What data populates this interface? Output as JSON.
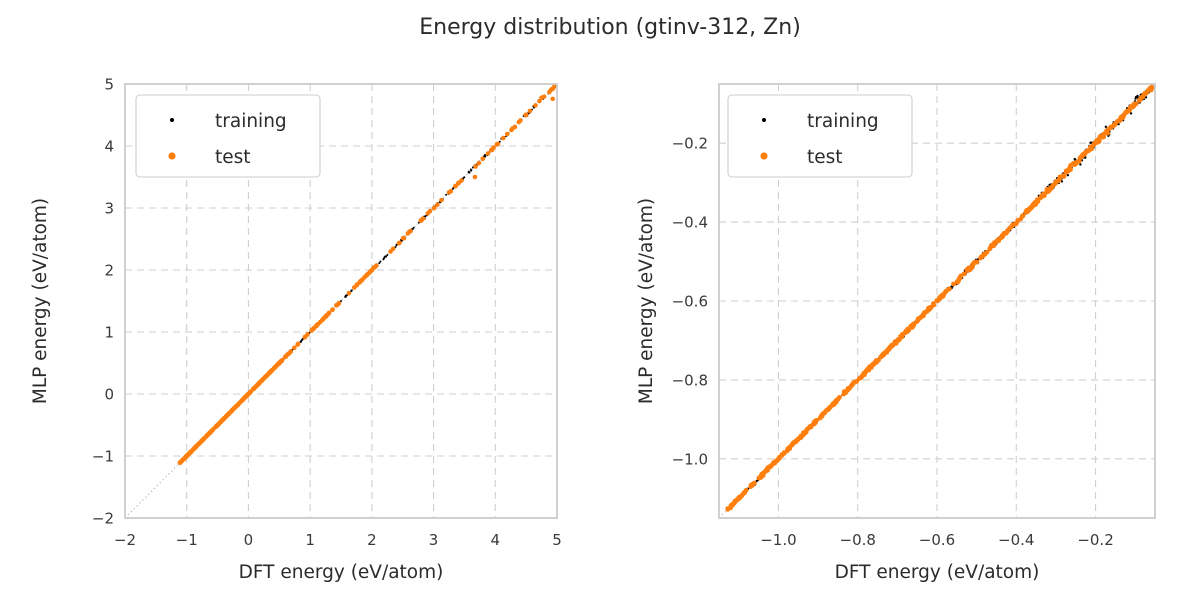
{
  "title": "Energy distribution (gtinv-312, Zn)",
  "colors": {
    "training": "#000000",
    "test": "#ff7f0e",
    "grid": "#cfcfcf",
    "spine": "#cbcbcb",
    "ref_line": "#aeaeae",
    "text": "#2b2b2b"
  },
  "legend": {
    "items": [
      {
        "label": "training",
        "color": "#000000"
      },
      {
        "label": "test",
        "color": "#ff7f0e"
      }
    ]
  },
  "chart_data": [
    {
      "id": "left",
      "type": "scatter",
      "title": "",
      "xlabel": "DFT energy (eV/atom)",
      "ylabel": "MLP energy (eV/atom)",
      "xlim": [
        -2,
        5
      ],
      "ylim": [
        -2,
        5
      ],
      "xticks": [
        -2,
        -1,
        0,
        1,
        2,
        3,
        4,
        5
      ],
      "xtick_labels": [
        "−2",
        "−1",
        "0",
        "1",
        "2",
        "3",
        "4",
        "5"
      ],
      "yticks": [
        -2,
        -1,
        0,
        1,
        2,
        3,
        4,
        5
      ],
      "ytick_labels": [
        "−2",
        "−1",
        "0",
        "1",
        "2",
        "3",
        "4",
        "5"
      ],
      "grid": "dashed",
      "legend_position": "upper-left",
      "identity_line": {
        "from": [
          -2,
          -2
        ],
        "to": [
          5,
          5
        ],
        "style": "dotted"
      },
      "data_range_note": "points lie on y=x from -1.12 to 4.98",
      "series": [
        {
          "name": "training",
          "color": "#000000",
          "marker_radius_px": 1.0,
          "seed": 7,
          "bands": [
            {
              "x_range": [
                -1.12,
                0.6
              ],
              "count": 210,
              "y_noise": 0.0035
            },
            {
              "x_range": [
                0.6,
                2.2
              ],
              "count": 120,
              "y_noise": 0.01
            },
            {
              "x_range": [
                2.2,
                3.6
              ],
              "count": 80,
              "y_noise": 0.018
            },
            {
              "x_range": [
                3.6,
                4.98
              ],
              "count": 70,
              "y_noise": 0.02
            }
          ],
          "points": []
        },
        {
          "name": "test",
          "color": "#ff7f0e",
          "marker_radius_px": 2.3,
          "seed": 13,
          "bands": [
            {
              "x_range": [
                -1.12,
                0.55
              ],
              "count": 240,
              "y_noise": 0.0025
            },
            {
              "x_range": [
                0.55,
                2.0
              ],
              "count": 60,
              "y_noise": 0.005
            },
            {
              "x_range": [
                2.0,
                3.5
              ],
              "count": 30,
              "y_noise": 0.009
            },
            {
              "x_range": [
                3.5,
                4.97
              ],
              "count": 28,
              "y_noise": 0.012
            }
          ],
          "points": [
            [
              3.67,
              3.5
            ],
            [
              4.93,
              4.76
            ],
            [
              4.97,
              4.97
            ],
            [
              4.75,
              4.78
            ]
          ]
        }
      ]
    },
    {
      "id": "right",
      "type": "scatter",
      "title": "",
      "xlabel": "DFT energy (eV/atom)",
      "ylabel": "MLP energy (eV/atom)",
      "xlim": [
        -1.15,
        -0.05
      ],
      "ylim": [
        -1.15,
        -0.05
      ],
      "xticks": [
        -1.0,
        -0.8,
        -0.6,
        -0.4,
        -0.2
      ],
      "xtick_labels": [
        "−1.0",
        "−0.8",
        "−0.6",
        "−0.4",
        "−0.2"
      ],
      "yticks": [
        -1.0,
        -0.8,
        -0.6,
        -0.4,
        -0.2
      ],
      "ytick_labels": [
        "−1.0",
        "−0.8",
        "−0.6",
        "−0.4",
        "−0.2"
      ],
      "grid": "dashed",
      "legend_position": "upper-left",
      "identity_line": {
        "from": [
          -1.15,
          -1.15
        ],
        "to": [
          -0.05,
          -0.05
        ],
        "style": "dotted"
      },
      "data_range_note": "points lie on y=x from -1.13 to -0.057",
      "series": [
        {
          "name": "training",
          "color": "#000000",
          "marker_radius_px": 1.2,
          "seed": 21,
          "bands": [
            {
              "x_range": [
                -1.13,
                -0.6
              ],
              "count": 160,
              "y_noise": 0.004
            },
            {
              "x_range": [
                -0.6,
                -0.35
              ],
              "count": 110,
              "y_noise": 0.006
            },
            {
              "x_range": [
                -0.35,
                -0.057
              ],
              "count": 220,
              "y_noise": 0.01
            }
          ],
          "points": []
        },
        {
          "name": "test",
          "color": "#ff7f0e",
          "marker_radius_px": 2.4,
          "seed": 33,
          "bands": [
            {
              "x_range": [
                -1.13,
                -0.7
              ],
              "count": 220,
              "y_noise": 0.0028
            },
            {
              "x_range": [
                -0.7,
                -0.35
              ],
              "count": 170,
              "y_noise": 0.0032
            },
            {
              "x_range": [
                -0.35,
                -0.057
              ],
              "count": 130,
              "y_noise": 0.0045
            }
          ],
          "points": []
        }
      ]
    }
  ]
}
